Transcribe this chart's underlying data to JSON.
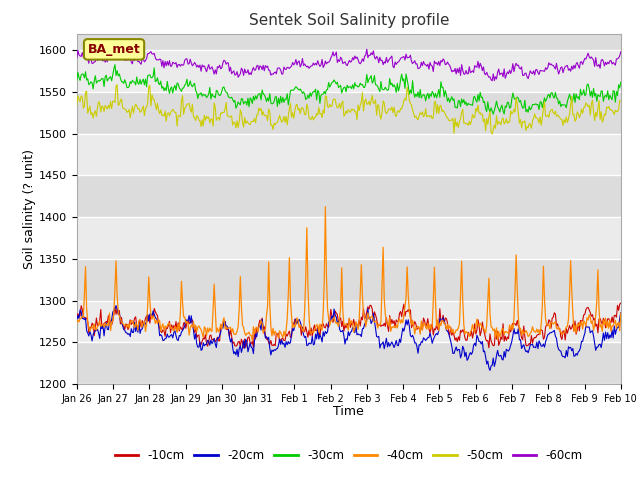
{
  "title": "Sentek Soil Salinity profile",
  "xlabel": "Time",
  "ylabel": "Soil salinity (? unit)",
  "ylim": [
    1200,
    1620
  ],
  "yticks": [
    1200,
    1250,
    1300,
    1350,
    1400,
    1450,
    1500,
    1550,
    1600
  ],
  "xtick_labels": [
    "Jan 26",
    "Jan 27",
    "Jan 28",
    "Jan 29",
    "Jan 30",
    "Jan 31",
    "Feb 1",
    "Feb 2",
    "Feb 3",
    "Feb 4",
    "Feb 5",
    "Feb 6",
    "Feb 7",
    "Feb 8",
    "Feb 9",
    "Feb 10"
  ],
  "legend_labels": [
    "-10cm",
    "-20cm",
    "-30cm",
    "-40cm",
    "-50cm",
    "-60cm"
  ],
  "legend_colors": [
    "#cc0000",
    "#0000cc",
    "#00cc00",
    "#ff8800",
    "#cccc00",
    "#9900cc"
  ],
  "site_label": "BA_met",
  "n_points": 500,
  "spike_days": [
    0.25,
    1.1,
    2.0,
    2.9,
    3.8,
    4.5,
    5.3,
    5.85,
    6.35,
    6.85,
    7.3,
    7.85,
    8.45,
    9.1,
    9.85,
    10.6,
    11.35,
    12.1,
    12.85,
    13.6,
    14.35
  ],
  "spike_heights": [
    60,
    65,
    50,
    55,
    55,
    70,
    75,
    80,
    130,
    140,
    60,
    75,
    100,
    65,
    75,
    85,
    70,
    90,
    75,
    85,
    70
  ]
}
